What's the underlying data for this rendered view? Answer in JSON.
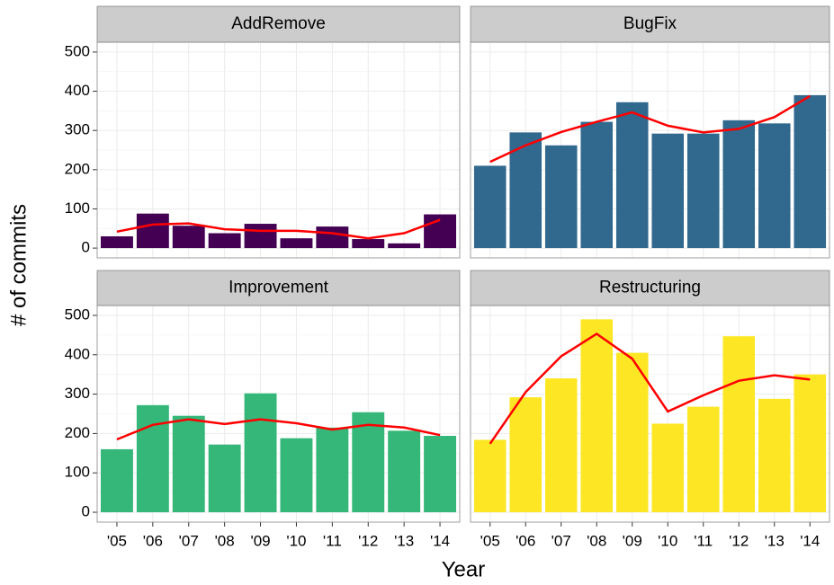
{
  "x_label": "Year",
  "y_label": "# of commits",
  "chart_data": [
    {
      "type": "bar",
      "title": "AddRemove",
      "categories": [
        "'05",
        "'06",
        "'07",
        "'08",
        "'09",
        "'10",
        "'11",
        "'12",
        "'13",
        "'14"
      ],
      "values": [
        30,
        88,
        57,
        38,
        62,
        25,
        55,
        23,
        12,
        86
      ],
      "color": "#440154",
      "trend_values": [
        42,
        60,
        63,
        48,
        44,
        44,
        38,
        25,
        38,
        72
      ],
      "trend_color": "#ff0000",
      "ylim": [
        -25,
        525
      ],
      "yticks": [
        0,
        100,
        200,
        300,
        400,
        500
      ],
      "grid": true
    },
    {
      "type": "bar",
      "title": "BugFix",
      "categories": [
        "'05",
        "'06",
        "'07",
        "'08",
        "'09",
        "'10",
        "'11",
        "'12",
        "'13",
        "'14"
      ],
      "values": [
        210,
        295,
        262,
        322,
        372,
        292,
        292,
        326,
        318,
        390
      ],
      "color": "#31688e",
      "trend_values": [
        220,
        262,
        296,
        322,
        346,
        312,
        295,
        304,
        334,
        388
      ],
      "trend_color": "#ff0000",
      "ylim": [
        -25,
        525
      ],
      "yticks": [
        0,
        100,
        200,
        300,
        400,
        500
      ],
      "grid": true
    },
    {
      "type": "bar",
      "title": "Improvement",
      "categories": [
        "'05",
        "'06",
        "'07",
        "'08",
        "'09",
        "'10",
        "'11",
        "'12",
        "'13",
        "'14"
      ],
      "values": [
        160,
        272,
        245,
        172,
        302,
        188,
        215,
        254,
        207,
        194
      ],
      "color": "#35b779",
      "trend_values": [
        185,
        222,
        236,
        224,
        236,
        226,
        210,
        222,
        215,
        196
      ],
      "trend_color": "#ff0000",
      "ylim": [
        -25,
        525
      ],
      "yticks": [
        0,
        100,
        200,
        300,
        400,
        500
      ],
      "grid": true
    },
    {
      "type": "bar",
      "title": "Restructuring",
      "categories": [
        "'05",
        "'06",
        "'07",
        "'08",
        "'09",
        "'10",
        "'11",
        "'12",
        "'13",
        "'14"
      ],
      "values": [
        184,
        292,
        340,
        490,
        405,
        225,
        268,
        447,
        288,
        350
      ],
      "color": "#fde725",
      "trend_values": [
        174,
        305,
        396,
        453,
        390,
        256,
        297,
        334,
        348,
        337
      ],
      "trend_color": "#ff0000",
      "ylim": [
        -25,
        525
      ],
      "yticks": [
        0,
        100,
        200,
        300,
        400,
        500
      ],
      "grid": true
    }
  ]
}
